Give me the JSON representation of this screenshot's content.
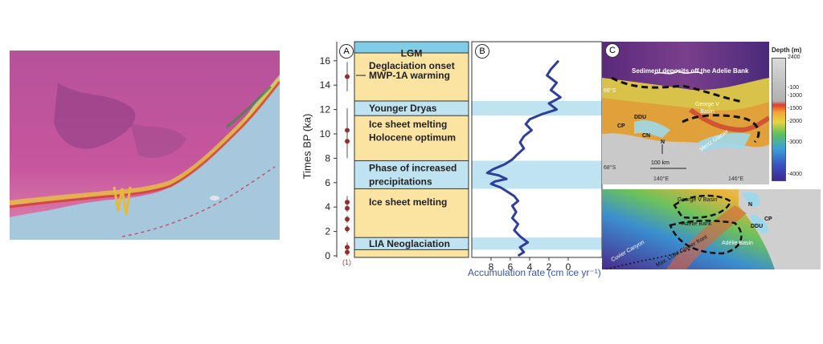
{
  "panels": {
    "a": "A",
    "b": "B",
    "c": "C"
  },
  "timeline": {
    "y_axis_label": "Times BP (ka)",
    "y_ticks": [
      "0",
      "2",
      "4",
      "6",
      "8",
      "10",
      "12",
      "14",
      "16"
    ],
    "footnote": "(1)",
    "events": [
      {
        "label": "LGM",
        "kind": "header"
      },
      {
        "label": "Deglaciation onset",
        "kind": "warm"
      },
      {
        "label": "MWP-1A warming",
        "kind": "warm"
      },
      {
        "label": "Younger Dryas",
        "kind": "cold"
      },
      {
        "label": "Ice sheet melting",
        "kind": "warm"
      },
      {
        "label": "Holocene optimum",
        "kind": "warm"
      },
      {
        "label": "Phase of increased",
        "kind": "cold"
      },
      {
        "label": "precipitations",
        "kind": "cold"
      },
      {
        "label": "Ice sheet melting",
        "kind": "warm"
      },
      {
        "label": "LIA Neoglaciation",
        "kind": "cold"
      }
    ]
  },
  "accumulation": {
    "x_axis_label": "Accumulation rate (cm ice yr⁻¹)",
    "x_ticks": [
      "8",
      "6",
      "4",
      "2",
      "0"
    ]
  },
  "map": {
    "title": "Sediment deposits off the Adelie Bank",
    "labels": {
      "george_v_basin": "George V Basin",
      "mertz_glacier": "Mertz Glacier",
      "ddu": "DDU",
      "cp": "CP",
      "cn": "CN",
      "north": "N",
      "scale": "100 km",
      "lat_66": "66°S",
      "lat_68": "68°S",
      "lon_140": "140°E",
      "lon_146": "146°E"
    },
    "colorbar": {
      "title": "Depth (m)",
      "ticks": [
        "2400",
        "-100",
        "-1000",
        "-1500",
        "-2000",
        "-3000",
        "-4000"
      ]
    },
    "lower": {
      "george_v_basin": "George V Basin",
      "adelie_bank": "Adélie Bank",
      "adelie_basin": "Adélie Basin",
      "cuvier_canyon": "Cuvier Canyon",
      "lgm_front": "Max. LGM Glacier front",
      "ddu": "DDU",
      "cp": "CP",
      "north": "N"
    }
  },
  "colors": {
    "warm": "#fbe3a1",
    "cold": "#bfe3f1",
    "header": "#7fcde6",
    "curve": "#2e3f99",
    "dot": "#9c2a2a"
  }
}
